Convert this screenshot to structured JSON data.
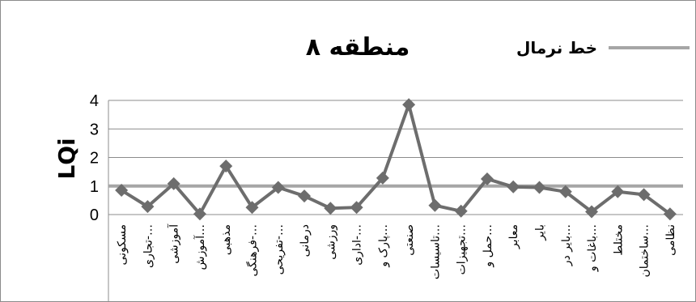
{
  "chart_data": {
    "type": "line",
    "title": "منطقه ۸",
    "xlabel": "",
    "ylabel": "LQi",
    "ylim": [
      0,
      4
    ],
    "yticks": [
      0,
      1,
      2,
      3,
      4
    ],
    "grid": true,
    "legend_placement": "top-right",
    "categories": [
      "مسکونی",
      "تجاری-…",
      "آموزشی",
      "آموزش…",
      "مذهبی",
      "فرهنگی-…",
      "تفریحی-…",
      "درمانی",
      "ورزشی",
      "اداری-…",
      "پارک و…",
      "صنعتی",
      "تاسیسات…",
      "تجهیزات…",
      "حمل و…",
      "معابر",
      "بایر",
      "بایر در…",
      "باغات و…",
      "مختلط",
      "ساختمان…",
      "نظامی"
    ],
    "series": [
      {
        "name": "",
        "color": "#6d6d6d",
        "values": [
          0.85,
          0.28,
          1.08,
          0.02,
          1.7,
          0.25,
          0.95,
          0.65,
          0.22,
          0.25,
          1.28,
          3.85,
          0.32,
          0.12,
          1.25,
          0.97,
          0.95,
          0.8,
          0.1,
          0.8,
          0.7,
          0.02
        ]
      },
      {
        "name": "خط نرمال",
        "color": "#a6a6a6",
        "values": [
          1,
          1,
          1,
          1,
          1,
          1,
          1,
          1,
          1,
          1,
          1,
          1,
          1,
          1,
          1,
          1,
          1,
          1,
          1,
          1,
          1,
          1
        ]
      }
    ]
  }
}
